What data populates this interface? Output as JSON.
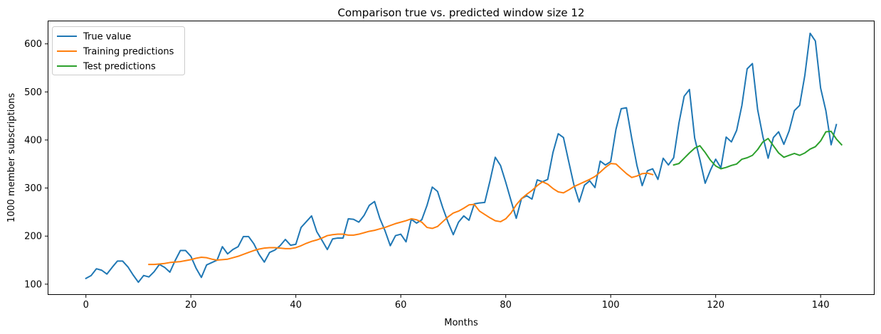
{
  "chart_data": {
    "type": "line",
    "title": "Comparison true vs. predicted window size 12",
    "xlabel": "Months",
    "ylabel": "1000 member subscriptions",
    "xlim": [
      -7.15,
      150.15
    ],
    "ylim": [
      79.1,
      646.9
    ],
    "xticks": [
      0,
      20,
      40,
      60,
      80,
      100,
      120,
      140
    ],
    "yticks": [
      100,
      200,
      300,
      400,
      500,
      600
    ],
    "grid": false,
    "legend_position": "top-left",
    "series": [
      {
        "name": "True value",
        "color": "#1f77b4",
        "x_start": 0,
        "values": [
          112,
          118,
          132,
          129,
          121,
          135,
          148,
          148,
          136,
          119,
          104,
          118,
          115,
          126,
          141,
          135,
          125,
          149,
          170,
          170,
          158,
          133,
          114,
          140,
          145,
          150,
          178,
          163,
          172,
          178,
          199,
          199,
          184,
          162,
          146,
          166,
          171,
          180,
          193,
          181,
          183,
          218,
          230,
          242,
          209,
          191,
          172,
          194,
          196,
          196,
          236,
          235,
          229,
          243,
          264,
          272,
          237,
          211,
          180,
          201,
          204,
          188,
          235,
          227,
          234,
          264,
          302,
          293,
          259,
          229,
          203,
          229,
          242,
          233,
          267,
          269,
          270,
          315,
          364,
          347,
          312,
          274,
          237,
          278,
          284,
          277,
          317,
          313,
          318,
          374,
          413,
          405,
          355,
          306,
          271,
          306,
          315,
          301,
          356,
          348,
          355,
          422,
          465,
          467,
          404,
          347,
          305,
          336,
          340,
          318,
          362,
          348,
          363,
          435,
          491,
          505,
          404,
          359,
          310,
          337,
          360,
          342,
          406,
          396,
          420,
          472,
          548,
          559,
          463,
          407,
          362,
          405,
          417,
          391,
          419,
          461,
          472,
          535,
          622,
          606,
          508,
          461,
          390,
          432
        ]
      },
      {
        "name": "Training predictions",
        "color": "#ff7f0e",
        "x_start": 12,
        "values": [
          141,
          141,
          142,
          143,
          145,
          146,
          147,
          149,
          151,
          154,
          156,
          155,
          152,
          150,
          151,
          152,
          155,
          158,
          162,
          166,
          170,
          173,
          175,
          176,
          176,
          175,
          174,
          174,
          176,
          180,
          185,
          189,
          192,
          196,
          201,
          203,
          204,
          204,
          202,
          202,
          204,
          207,
          210,
          212,
          215,
          218,
          222,
          226,
          229,
          232,
          236,
          234,
          229,
          218,
          216,
          220,
          230,
          240,
          248,
          252,
          258,
          265,
          266,
          252,
          245,
          238,
          232,
          230,
          236,
          248,
          265,
          278,
          287,
          295,
          305,
          313,
          308,
          299,
          292,
          290,
          296,
          303,
          308,
          313,
          318,
          324,
          333,
          343,
          351,
          350,
          340,
          330,
          322,
          325,
          330,
          331,
          328
        ]
      },
      {
        "name": "Test predictions",
        "color": "#2ca02c",
        "x_start": 112,
        "values": [
          348,
          351,
          362,
          373,
          383,
          388,
          374,
          358,
          346,
          340,
          343,
          347,
          350,
          360,
          363,
          368,
          380,
          396,
          403,
          388,
          373,
          364,
          368,
          372,
          368,
          373,
          381,
          386,
          398,
          417,
          418,
          402,
          390
        ]
      }
    ]
  }
}
